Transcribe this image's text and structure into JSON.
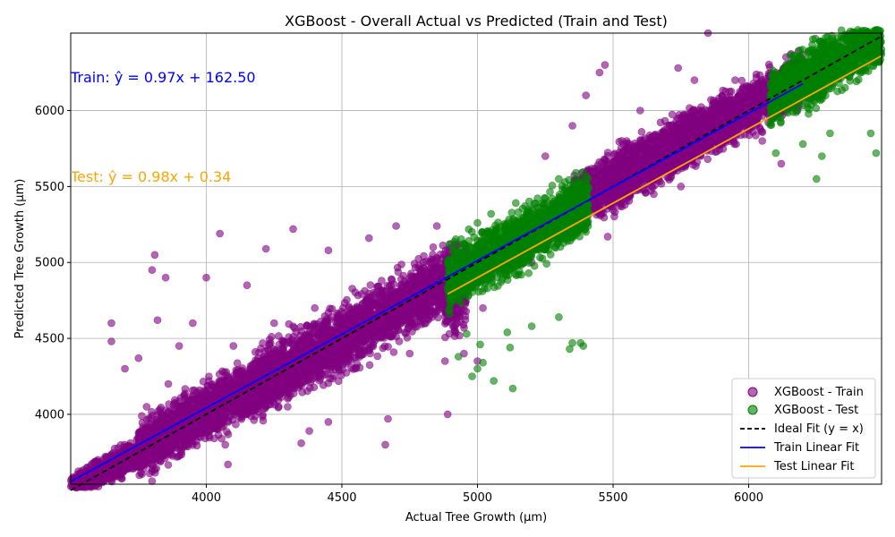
{
  "chart_data": {
    "type": "scatter",
    "title": "XGBoost - Overall Actual vs Predicted (Train and Test)",
    "xlabel": "Actual Tree Growth (µm)",
    "ylabel": "Predicted Tree Growth (µm)",
    "xlim": [
      3500,
      6490
    ],
    "ylim": [
      3540,
      6510
    ],
    "x_ticks": [
      4000,
      4500,
      5000,
      5500,
      6000
    ],
    "y_ticks": [
      4000,
      4500,
      5000,
      5500,
      6000
    ],
    "grid": true,
    "legend_position": "bottom-right",
    "annotations": [
      {
        "text": "Train: ŷ = 0.97x + 162.50",
        "color": "#0000ff"
      },
      {
        "text": "Test: ŷ = 0.98x + 0.34",
        "color": "#ffa500"
      }
    ],
    "series": [
      {
        "name": "XGBoost - Train",
        "kind": "scatter",
        "color": "#800080",
        "alpha": 0.6,
        "points": [
          [
            3520,
            3580
          ],
          [
            3560,
            3650
          ],
          [
            3600,
            3700
          ],
          [
            3620,
            3620
          ],
          [
            3650,
            4600
          ],
          [
            3650,
            4480
          ],
          [
            3700,
            4300
          ],
          [
            3720,
            3750
          ],
          [
            3750,
            4370
          ],
          [
            3780,
            4050
          ],
          [
            3800,
            3560
          ],
          [
            3800,
            4950
          ],
          [
            3810,
            5050
          ],
          [
            3820,
            4620
          ],
          [
            3850,
            4900
          ],
          [
            3860,
            4200
          ],
          [
            3900,
            4450
          ],
          [
            3920,
            3800
          ],
          [
            3950,
            4600
          ],
          [
            4000,
            4900
          ],
          [
            4020,
            4080
          ],
          [
            4050,
            5190
          ],
          [
            4070,
            3800
          ],
          [
            4080,
            3670
          ],
          [
            4100,
            4450
          ],
          [
            4150,
            4850
          ],
          [
            4200,
            4300
          ],
          [
            4220,
            5090
          ],
          [
            4250,
            4600
          ],
          [
            4300,
            4050
          ],
          [
            4320,
            5220
          ],
          [
            4350,
            3810
          ],
          [
            4380,
            3890
          ],
          [
            4400,
            4700
          ],
          [
            4450,
            5080
          ],
          [
            4450,
            3950
          ],
          [
            4500,
            4500
          ],
          [
            4550,
            4300
          ],
          [
            4600,
            5160
          ],
          [
            4650,
            4800
          ],
          [
            4660,
            3800
          ],
          [
            4670,
            3970
          ],
          [
            4700,
            5240
          ],
          [
            4750,
            4400
          ],
          [
            4800,
            5000
          ],
          [
            4850,
            5240
          ],
          [
            4880,
            4350
          ],
          [
            4890,
            4000
          ],
          [
            4900,
            4750
          ],
          [
            4950,
            4400
          ],
          [
            5000,
            4350
          ],
          [
            5020,
            4700
          ],
          [
            5200,
            5000
          ],
          [
            5250,
            5700
          ],
          [
            5300,
            5400
          ],
          [
            5350,
            5900
          ],
          [
            5400,
            6100
          ],
          [
            5450,
            6250
          ],
          [
            5470,
            6300
          ],
          [
            5480,
            5170
          ],
          [
            5500,
            5600
          ],
          [
            5550,
            5800
          ],
          [
            5600,
            6000
          ],
          [
            5650,
            5450
          ],
          [
            5700,
            5900
          ],
          [
            5740,
            6280
          ],
          [
            5750,
            5500
          ],
          [
            5800,
            6200
          ],
          [
            5850,
            6510
          ],
          [
            5850,
            5750
          ],
          [
            5900,
            6050
          ],
          [
            5950,
            6200
          ],
          [
            6000,
            6100
          ],
          [
            6050,
            5800
          ],
          [
            6100,
            6250
          ],
          [
            6120,
            5650
          ],
          [
            6150,
            6300
          ],
          [
            6180,
            6000
          ]
        ],
        "clouds": [
          {
            "x": [
              3500,
              3850
            ],
            "y_off": [
              -130,
              130
            ],
            "n": 900
          },
          {
            "x": [
              3750,
              4250
            ],
            "y_off": [
              -250,
              280
            ],
            "n": 1600
          },
          {
            "x": [
              4200,
              4900
            ],
            "y_off": [
              -300,
              300
            ],
            "n": 2200
          },
          {
            "x": [
              4880,
              4960
            ],
            "y_off": [
              -500,
              300
            ],
            "n": 250
          },
          {
            "x": [
              5350,
              5800
            ],
            "y_off": [
              -220,
              300
            ],
            "n": 1500
          },
          {
            "x": [
              5750,
              6200
            ],
            "y_off": [
              -220,
              260
            ],
            "n": 1500
          }
        ]
      },
      {
        "name": "XGBoost - Test",
        "kind": "scatter",
        "color": "#008000",
        "alpha": 0.6,
        "points": [
          [
            4930,
            4380
          ],
          [
            4960,
            4530
          ],
          [
            4980,
            4250
          ],
          [
            5000,
            4300
          ],
          [
            5010,
            4460
          ],
          [
            5020,
            4340
          ],
          [
            5060,
            4220
          ],
          [
            5110,
            4540
          ],
          [
            5120,
            4440
          ],
          [
            5130,
            4170
          ],
          [
            5200,
            4580
          ],
          [
            5300,
            4640
          ],
          [
            5340,
            4430
          ],
          [
            5350,
            4470
          ],
          [
            5380,
            4470
          ],
          [
            5390,
            4450
          ],
          [
            5000,
            5260
          ],
          [
            5050,
            5320
          ],
          [
            5150,
            5330
          ],
          [
            5300,
            5550
          ],
          [
            5380,
            5500
          ],
          [
            6100,
            5720
          ],
          [
            6200,
            5780
          ],
          [
            6250,
            5550
          ],
          [
            6270,
            5700
          ],
          [
            6300,
            5850
          ],
          [
            6350,
            6400
          ],
          [
            6400,
            6500
          ],
          [
            6450,
            5850
          ],
          [
            6470,
            5720
          ],
          [
            6230,
            6400
          ],
          [
            6330,
            6450
          ]
        ],
        "clouds": [
          {
            "x": [
              4890,
              5410
            ],
            "y_off": [
              -280,
              260
            ],
            "n": 1800
          },
          {
            "x": [
              6080,
              6490
            ],
            "y_off": [
              -260,
              260
            ],
            "n": 1200
          }
        ]
      },
      {
        "name": "Ideal Fit (y = x)",
        "kind": "line",
        "color": "#000000",
        "dash": true,
        "x": [
          3500,
          6490
        ],
        "y": [
          3500,
          6490
        ]
      },
      {
        "name": "Train Linear Fit",
        "kind": "line",
        "color": "#0000ff",
        "x": [
          3500,
          6200
        ],
        "y": [
          3557.5,
          6176.5
        ]
      },
      {
        "name": "Test Linear Fit",
        "kind": "line",
        "color": "#ffa500",
        "x": [
          4890,
          6490
        ],
        "y": [
          4792.5,
          6360.5
        ]
      }
    ]
  }
}
